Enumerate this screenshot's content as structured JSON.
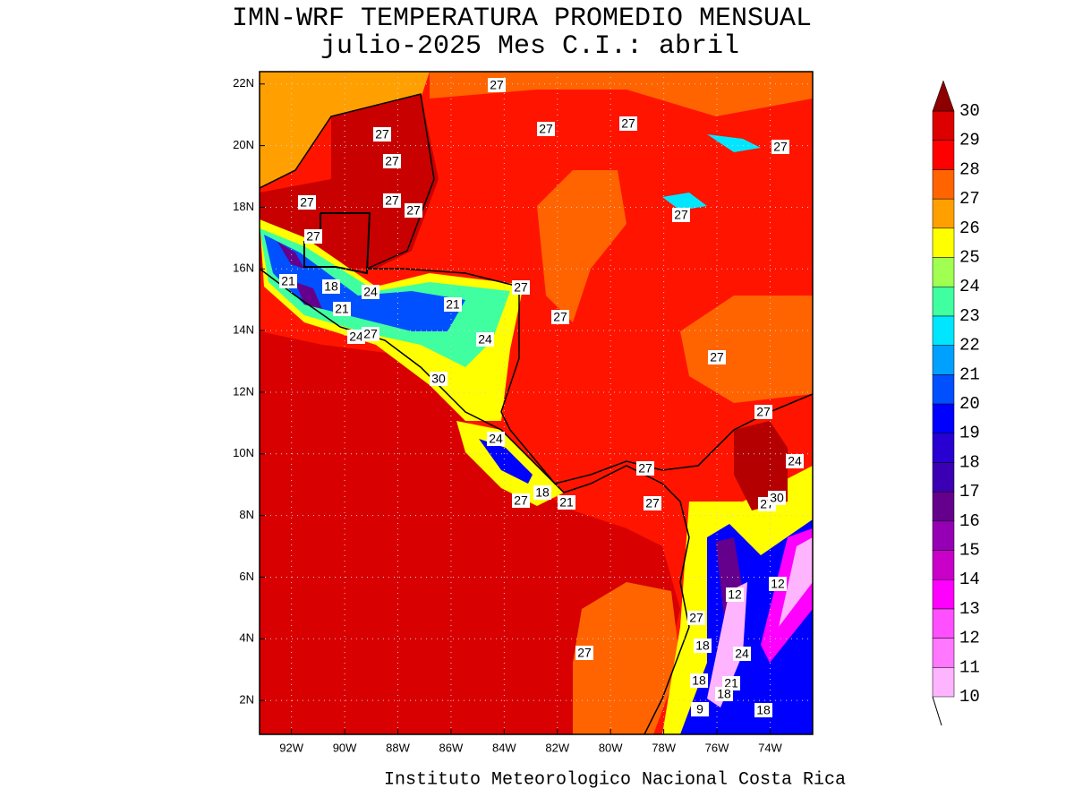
{
  "map": {
    "title": [
      "IMN-WRF  TEMPERATURA PROMEDIO MENSUAL",
      "julio-2025 Mes C.I.: abril"
    ],
    "footer": "Instituto Meteorologico Nacional Costa Rica",
    "xlim": [
      -93.2,
      -72.4
    ],
    "ylim": [
      0.9,
      22.4
    ],
    "xticks": [
      {
        "value": -92,
        "label": "92W"
      },
      {
        "value": -90,
        "label": "90W"
      },
      {
        "value": -88,
        "label": "88W"
      },
      {
        "value": -86,
        "label": "86W"
      },
      {
        "value": -84,
        "label": "84W"
      },
      {
        "value": -82,
        "label": "82W"
      },
      {
        "value": -80,
        "label": "80W"
      },
      {
        "value": -78,
        "label": "78W"
      },
      {
        "value": -76,
        "label": "76W"
      },
      {
        "value": -74,
        "label": "74W"
      }
    ],
    "yticks": [
      {
        "value": 22,
        "label": "22N"
      },
      {
        "value": 20,
        "label": "20N"
      },
      {
        "value": 18,
        "label": "18N"
      },
      {
        "value": 16,
        "label": "16N"
      },
      {
        "value": 14,
        "label": "14N"
      },
      {
        "value": 12,
        "label": "12N"
      },
      {
        "value": 10,
        "label": "10N"
      },
      {
        "value": 8,
        "label": "8N"
      },
      {
        "value": 6,
        "label": "6N"
      },
      {
        "value": 4,
        "label": "4N"
      },
      {
        "value": 2,
        "label": "2N"
      }
    ],
    "colorbar": {
      "levels": [
        10,
        11,
        12,
        13,
        14,
        15,
        16,
        17,
        18,
        19,
        20,
        21,
        22,
        23,
        24,
        25,
        26,
        27,
        28,
        29,
        30
      ],
      "colors": [
        "#ffb4ff",
        "#ff78ff",
        "#ff50ff",
        "#ff00ff",
        "#c800c8",
        "#9600b4",
        "#64008c",
        "#3c00b4",
        "#2800d2",
        "#0000ff",
        "#0050ff",
        "#00a0ff",
        "#00e6ff",
        "#40ffa0",
        "#a0ff50",
        "#ffff00",
        "#ffa000",
        "#ff6400",
        "#ff0000",
        "#dc0000",
        "#b40000"
      ],
      "over_color": "#8c0000"
    },
    "contour_labels": [
      "27",
      "27",
      "27",
      "27",
      "27",
      "27",
      "27",
      "27",
      "27",
      "27",
      "27",
      "21",
      "18",
      "24",
      "21",
      "21",
      "27",
      "27",
      "24",
      "24",
      "27",
      "30",
      "27",
      "27",
      "24",
      "24",
      "27",
      "18",
      "27",
      "21",
      "27",
      "27",
      "30",
      "12",
      "12",
      "27",
      "18",
      "24",
      "27",
      "18",
      "21",
      "18",
      "9",
      "18"
    ]
  }
}
